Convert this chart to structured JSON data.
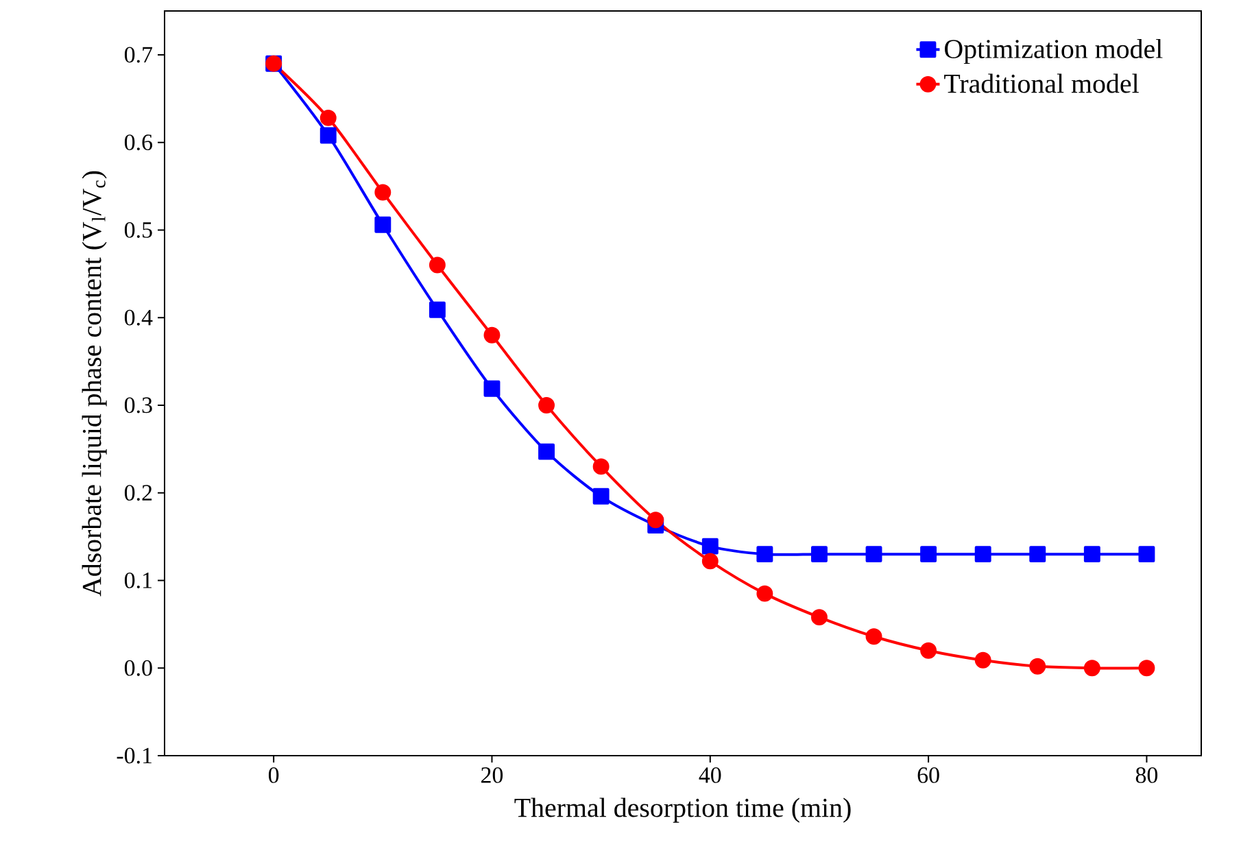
{
  "chart_data": {
    "type": "line",
    "xlabel": "Thermal desorption time (min)",
    "ylabel": "Adsorbate liquid phase content (V$_{l}$/V$_{c}$)",
    "x": [
      0,
      5,
      10,
      15,
      20,
      25,
      30,
      35,
      40,
      45,
      50,
      55,
      60,
      65,
      70,
      75,
      80
    ],
    "series": [
      {
        "name": "Optimization model",
        "color": "#0000ff",
        "marker": "square",
        "values": [
          0.69,
          0.608,
          0.506,
          0.409,
          0.319,
          0.247,
          0.196,
          0.163,
          0.139,
          0.13,
          0.13,
          0.13,
          0.13,
          0.13,
          0.13,
          0.13,
          0.13
        ]
      },
      {
        "name": "Traditional model",
        "color": "#ff0000",
        "marker": "circle",
        "values": [
          0.69,
          0.628,
          0.543,
          0.46,
          0.38,
          0.3,
          0.23,
          0.169,
          0.122,
          0.085,
          0.058,
          0.036,
          0.02,
          0.009,
          0.002,
          0.0,
          0.0
        ]
      }
    ],
    "xlim": [
      -10,
      85
    ],
    "ylim": [
      -0.1,
      0.75
    ],
    "xticks": [
      0,
      20,
      40,
      60,
      80
    ],
    "yticks": [
      {
        "value": -0.1,
        "label": "-0.1"
      },
      {
        "value": 0.0,
        "label": "0.0"
      },
      {
        "value": 0.1,
        "label": "0.1"
      },
      {
        "value": 0.2,
        "label": "0.2"
      },
      {
        "value": 0.3,
        "label": "0.3"
      },
      {
        "value": 0.4,
        "label": "0.4"
      },
      {
        "value": 0.5,
        "label": "0.5"
      },
      {
        "value": 0.6,
        "label": "0.6"
      },
      {
        "value": 0.7,
        "label": "0.7"
      }
    ],
    "legend": "top right",
    "grid": false,
    "line_style": "solid"
  }
}
